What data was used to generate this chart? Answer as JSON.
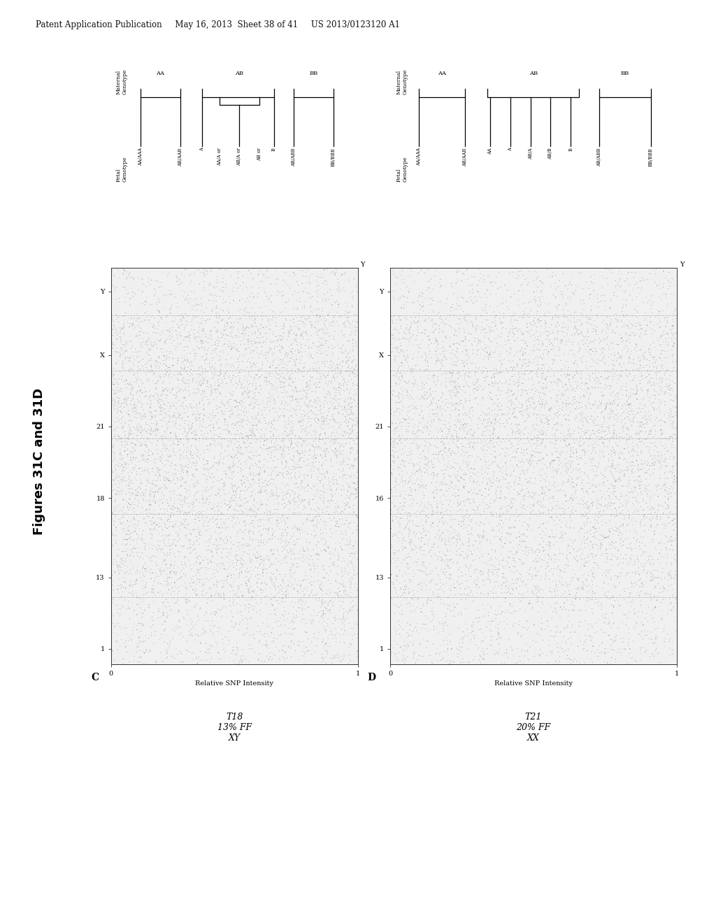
{
  "bg_color": "#ffffff",
  "header_text": "Patent Application Publication     May 16, 2013  Sheet 38 of 41     US 2013/0123120 A1",
  "figure_label": "Figures 31C and 31D",
  "panel_C": {
    "label": "C",
    "xlabel": "Relative SNP Intensity",
    "y_ticks": [
      "1",
      "13",
      "18",
      "21",
      "X",
      "Y"
    ],
    "y_tick_pos": [
      0.04,
      0.22,
      0.42,
      0.6,
      0.78,
      0.94
    ],
    "subtitle": "T18\n13% FF\nXY",
    "xlim": [
      0,
      1
    ],
    "ylim": [
      0,
      1
    ],
    "dividers": [
      0.17,
      0.38,
      0.57,
      0.74,
      0.88
    ]
  },
  "panel_D": {
    "label": "D",
    "xlabel": "Relative SNP Intensity",
    "y_ticks": [
      "1",
      "13",
      "16",
      "21",
      "X",
      "Y"
    ],
    "y_tick_pos": [
      0.04,
      0.22,
      0.42,
      0.6,
      0.78,
      0.94
    ],
    "subtitle": "T21\n20% FF\nXX",
    "xlim": [
      0,
      1
    ],
    "ylim": [
      0,
      1
    ],
    "dividers": [
      0.17,
      0.38,
      0.57,
      0.74,
      0.88
    ]
  }
}
